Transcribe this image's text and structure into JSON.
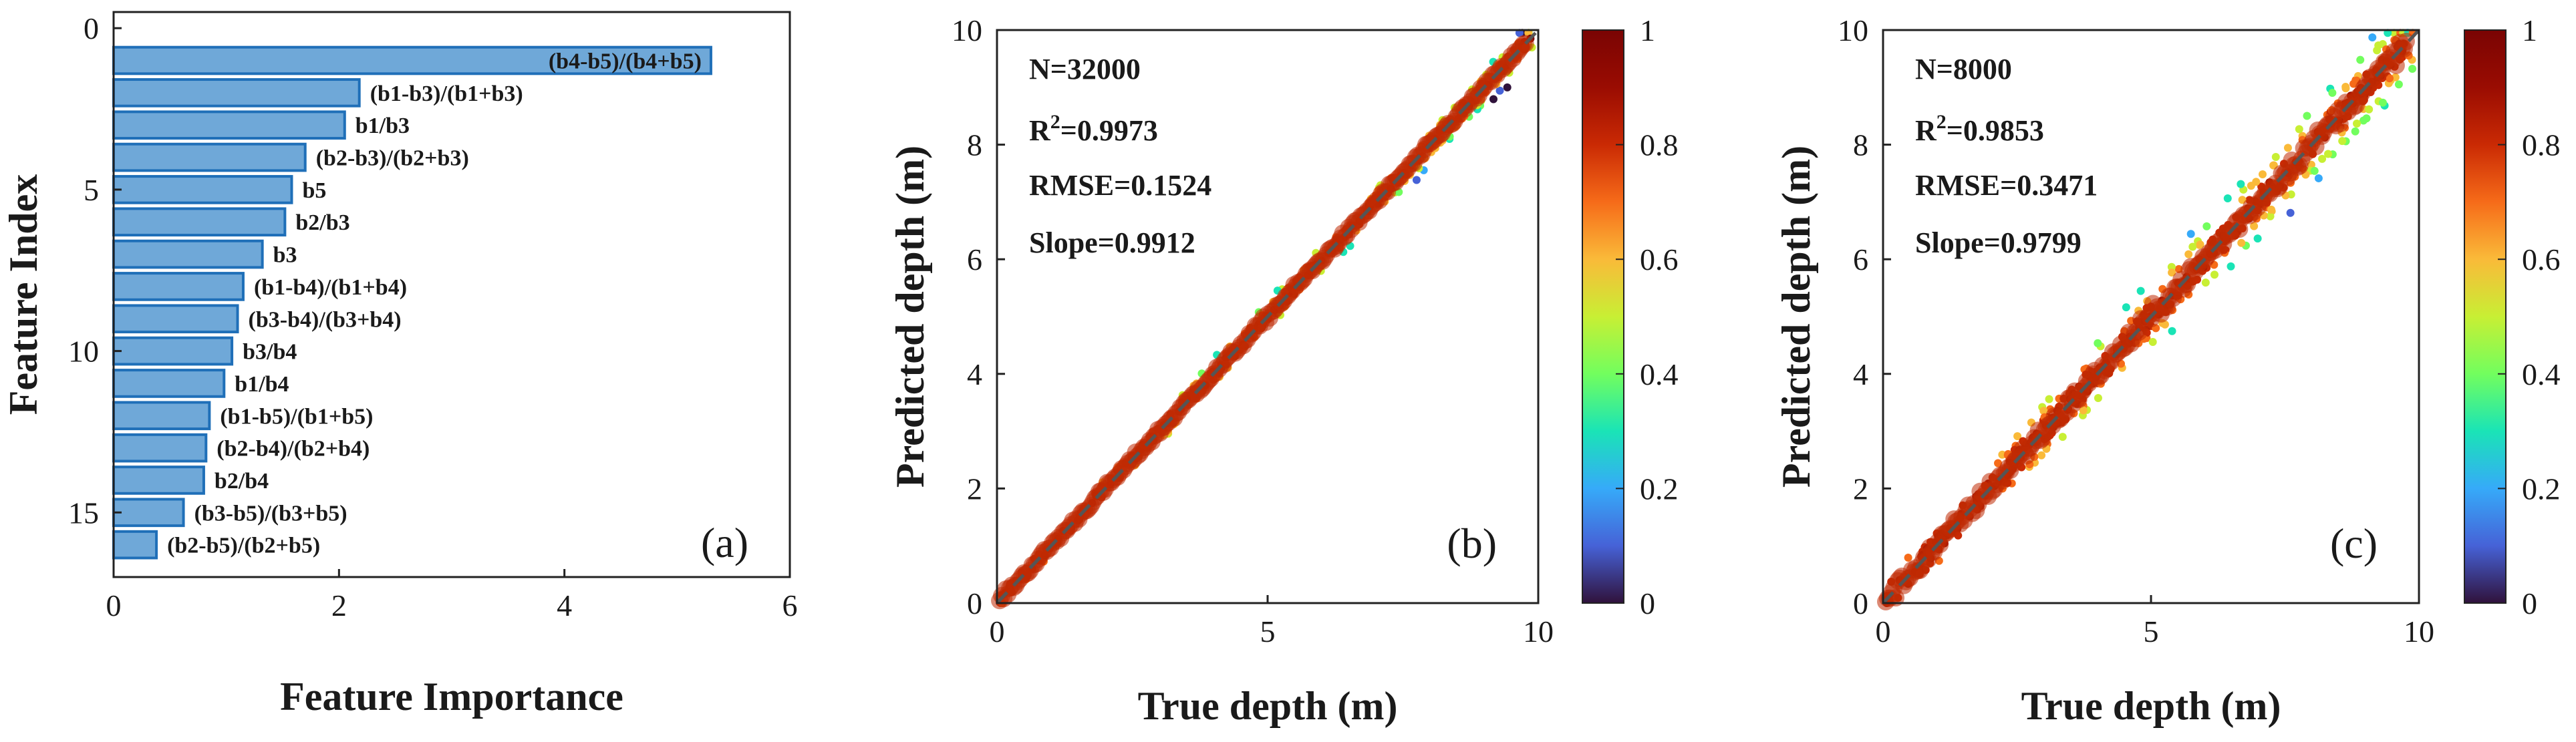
{
  "figure": {
    "panel_labels": [
      "(a)",
      "(b)",
      "(c)"
    ]
  },
  "chart_data": [
    {
      "type": "bar",
      "orientation": "horizontal",
      "panel": "(a)",
      "xlabel": "Feature Importance",
      "ylabel": "Feature Index",
      "xlim": [
        0,
        6
      ],
      "ylim": [
        17,
        -0.5
      ],
      "xticks": [
        0,
        2,
        4,
        6
      ],
      "yticks": [
        0,
        5,
        10,
        15
      ],
      "bar_color": "#6fa8d8",
      "bar_edge_color": "#1f6fb8",
      "categories": [
        "(b4-b5)/(b4+b5)",
        "(b1-b3)/(b1+b3)",
        "b1/b3",
        "(b2-b3)/(b2+b3)",
        "b5",
        "b2/b3",
        "b3",
        "(b1-b4)/(b1+b4)",
        "(b3-b4)/(b3+b4)",
        "b3/b4",
        "b1/b4",
        "(b1-b5)/(b1+b5)",
        "(b2-b4)/(b2+b4)",
        "b2/b4",
        "(b3-b5)/(b3+b5)",
        "(b2-b5)/(b2+b5)"
      ],
      "feature_index": [
        1,
        2,
        3,
        4,
        5,
        6,
        7,
        8,
        9,
        10,
        11,
        12,
        13,
        14,
        15,
        16
      ],
      "values": [
        5.3,
        2.18,
        2.05,
        1.7,
        1.58,
        1.52,
        1.32,
        1.15,
        1.1,
        1.05,
        0.98,
        0.85,
        0.82,
        0.8,
        0.62,
        0.38
      ]
    },
    {
      "type": "scatter",
      "panel": "(b)",
      "style": "density-colored scatter with 1:1 dashed line",
      "xlabel": "True depth (m)",
      "ylabel": "Predicted depth (m)",
      "xlim": [
        0,
        10
      ],
      "ylim": [
        0,
        10
      ],
      "xticks": [
        0,
        5,
        10
      ],
      "yticks": [
        0,
        2,
        4,
        6,
        8,
        10
      ],
      "stats": {
        "n": "N=32000",
        "r2_prefix": "R",
        "r2_sup": "2",
        "r2_value": "=0.9973",
        "rmse": "RMSE=0.1524",
        "slope": "Slope=0.9912"
      },
      "colorbar": {
        "range": [
          0,
          1
        ],
        "ticks": [
          "0",
          "0.2",
          "0.4",
          "0.6",
          "0.8",
          "1"
        ],
        "colormap": "turbo"
      },
      "reference_line": {
        "type": "1:1",
        "style": "dashed",
        "color": "#555555"
      }
    },
    {
      "type": "scatter",
      "panel": "(c)",
      "style": "density-colored scatter with 1:1 dashed line",
      "xlabel": "True depth (m)",
      "ylabel": "Predicted depth (m)",
      "xlim": [
        0,
        10
      ],
      "ylim": [
        0,
        10
      ],
      "xticks": [
        0,
        5,
        10
      ],
      "yticks": [
        0,
        2,
        4,
        6,
        8,
        10
      ],
      "stats": {
        "n": "N=8000",
        "r2_prefix": "R",
        "r2_sup": "2",
        "r2_value": "=0.9853",
        "rmse": "RMSE=0.3471",
        "slope": "Slope=0.9799"
      },
      "colorbar": {
        "range": [
          0,
          1
        ],
        "ticks": [
          "0",
          "0.2",
          "0.4",
          "0.6",
          "0.8",
          "1"
        ],
        "colormap": "turbo"
      },
      "reference_line": {
        "type": "1:1",
        "style": "dashed",
        "color": "#555555"
      }
    }
  ]
}
